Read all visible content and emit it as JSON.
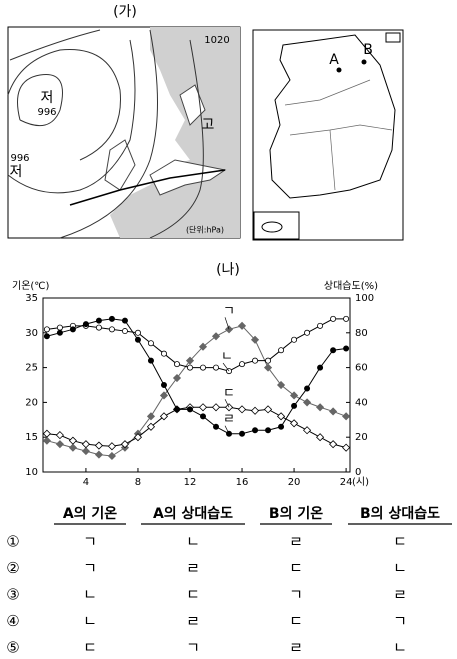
{
  "weather_map": {
    "title": "(가)",
    "labels": [
      "1020",
      "저",
      "996",
      "996",
      "저",
      "고",
      "(단위:hPa)"
    ]
  },
  "korea_map": {
    "points": [
      "A",
      "B"
    ]
  },
  "chart_data": {
    "type": "line",
    "title": "(나)",
    "y_label": "기온(℃)",
    "y2_label": "상대습도(%)",
    "x_label": "(시)",
    "x": [
      1,
      2,
      3,
      4,
      5,
      6,
      7,
      8,
      9,
      10,
      11,
      12,
      13,
      14,
      15,
      16,
      17,
      18,
      19,
      20,
      21,
      22,
      23,
      24
    ],
    "xlim": [
      0.7,
      24.3
    ],
    "xticks": [
      4,
      8,
      12,
      16,
      20,
      24
    ],
    "ylim": [
      10,
      35
    ],
    "yticks": [
      10,
      15,
      20,
      25,
      30,
      35
    ],
    "y2lim": [
      0,
      100
    ],
    "y2ticks": [
      0,
      20,
      40,
      60,
      80,
      100
    ],
    "series": [
      {
        "name": "ㄱ",
        "color": "#666666",
        "marker": "diamond-filled",
        "values": [
          14.5,
          14,
          13.5,
          13,
          12.5,
          12.3,
          13.5,
          15.5,
          18,
          21,
          23.5,
          26,
          28,
          29.5,
          30.5,
          31,
          29,
          25,
          22.5,
          21,
          20,
          19.3,
          18.7,
          18
        ]
      },
      {
        "name": "ㄴ",
        "color": "#000000",
        "marker": "circle-open",
        "axis": "y2",
        "values": [
          82,
          83,
          84,
          84,
          83,
          82,
          81,
          80,
          74,
          68,
          62,
          60,
          60,
          60,
          58,
          62,
          64,
          64,
          70,
          76,
          80,
          84,
          88,
          88
        ]
      },
      {
        "name": "ㄷ",
        "color": "#000000",
        "marker": "diamond-open",
        "values": [
          15.5,
          15.3,
          14.5,
          14,
          13.8,
          13.7,
          14,
          15,
          16.5,
          18,
          19,
          19.3,
          19.3,
          19.3,
          19.3,
          19,
          18.8,
          19,
          18,
          17,
          16,
          15,
          14,
          13.5
        ]
      },
      {
        "name": "ㄹ",
        "color": "#000000",
        "marker": "circle-filled",
        "axis": "y2",
        "values": [
          78,
          80,
          82,
          85,
          87,
          88,
          87,
          76,
          64,
          50,
          36,
          36,
          32,
          26,
          22,
          22,
          24,
          24,
          26,
          38,
          48,
          60,
          70,
          71
        ]
      }
    ]
  },
  "answer_table": {
    "header": [
      "A의 기온",
      "A의 상대습도",
      "B의 기온",
      "B의 상대습도"
    ],
    "rows": [
      [
        "①",
        "ㄱ",
        "ㄴ",
        "ㄹ",
        "ㄷ"
      ],
      [
        "②",
        "ㄱ",
        "ㄹ",
        "ㄷ",
        "ㄴ"
      ],
      [
        "③",
        "ㄴ",
        "ㄷ",
        "ㄱ",
        "ㄹ"
      ],
      [
        "④",
        "ㄴ",
        "ㄹ",
        "ㄷ",
        "ㄱ"
      ],
      [
        "⑤",
        "ㄷ",
        "ㄱ",
        "ㄹ",
        "ㄴ"
      ]
    ]
  }
}
